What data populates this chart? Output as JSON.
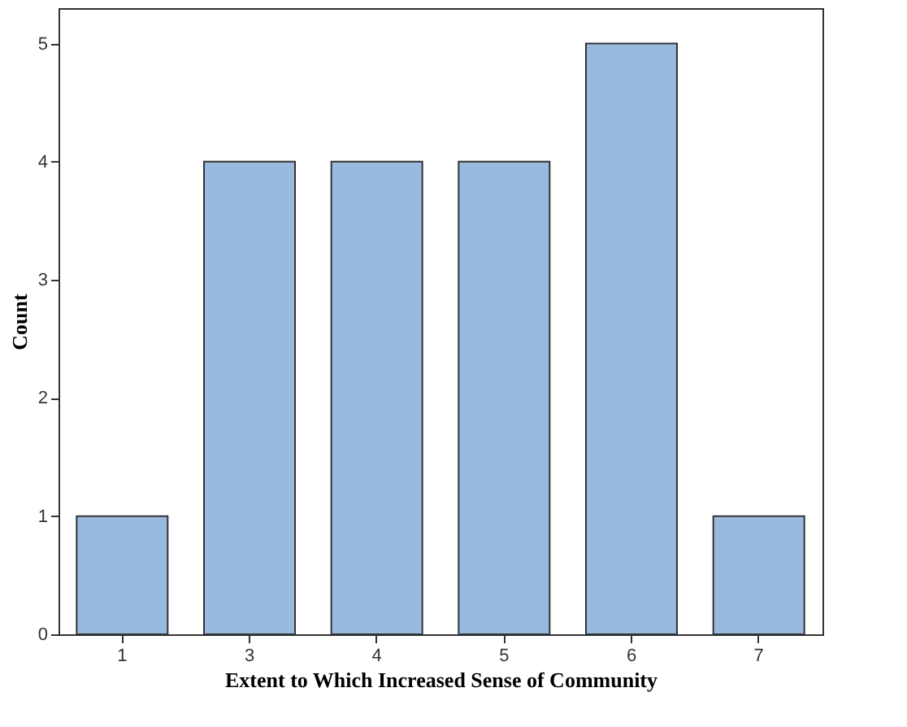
{
  "chart_data": {
    "type": "bar",
    "xlabel": "Extent to Which Increased Sense of Community",
    "ylabel": "Count",
    "categories": [
      "1",
      "3",
      "4",
      "5",
      "6",
      "7"
    ],
    "values": [
      1,
      4,
      4,
      4,
      5,
      1
    ],
    "color": "#99badf",
    "ylim": [
      0,
      5.3
    ],
    "yticks": [
      0,
      1,
      2,
      3,
      4,
      5
    ],
    "grid": false
  }
}
